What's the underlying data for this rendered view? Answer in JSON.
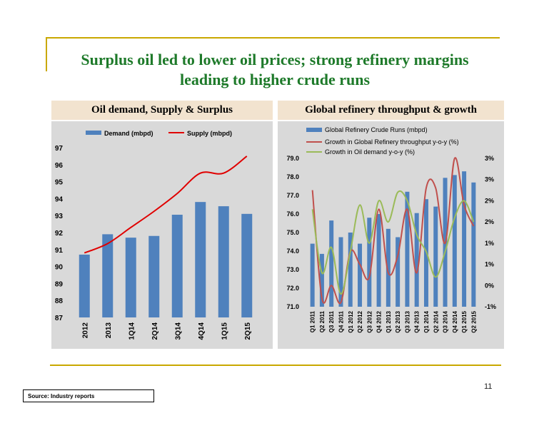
{
  "slide": {
    "title_line1": "Surplus oil led to lower oil prices; strong refinery margins",
    "title_line2": "leading to higher crude runs",
    "left_heading": "Oil demand, Supply & Surplus",
    "right_heading": "Global refinery throughput & growth",
    "page_number": "11",
    "source": "Source: Industry reports"
  },
  "colors": {
    "accent_gold": "#c9a800",
    "title_green": "#1e7a2a",
    "bar_blue": "#4f81bd",
    "line_red": "#e00000",
    "line_dark_red": "#c0504d",
    "line_green": "#9bbb59"
  },
  "chart_data": [
    {
      "type": "bar",
      "categories": [
        "2012",
        "2013",
        "1Q14",
        "2Q14",
        "3Q14",
        "4Q14",
        "1Q15",
        "2Q15"
      ],
      "series": [
        {
          "name": "Demand (mbpd)",
          "type": "bar",
          "values": [
            90.7,
            91.9,
            91.7,
            91.8,
            93.05,
            93.8,
            93.55,
            93.1
          ]
        },
        {
          "name": "Supply (mbpd)",
          "type": "line",
          "values": [
            90.8,
            91.35,
            92.3,
            93.25,
            94.3,
            95.5,
            95.5,
            96.5
          ]
        }
      ],
      "ylim": [
        87,
        97
      ],
      "yticks": [
        "87",
        "88",
        "89",
        "90",
        "91",
        "92",
        "93",
        "94",
        "95",
        "96",
        "97"
      ],
      "grid": false,
      "legend": "top"
    },
    {
      "type": "bar",
      "categories": [
        "Q1 2011",
        "Q2 2011",
        "Q3 2011",
        "Q4 2011",
        "Q1 2012",
        "Q2 2012",
        "Q3 2012",
        "Q4 2012",
        "Q1 2013",
        "Q2 2013",
        "Q3 2013",
        "Q4 2013",
        "Q1 2014",
        "Q2 2014",
        "Q3 2014",
        "Q4 2014",
        "Q1 2015",
        "Q2 2015"
      ],
      "series": [
        {
          "name": "Global Refinery Crude Runs (mbpd)",
          "type": "bar",
          "axis": "left",
          "values": [
            74.4,
            73.85,
            75.65,
            74.75,
            75.0,
            74.4,
            75.8,
            76.0,
            75.2,
            74.75,
            77.2,
            76.05,
            76.8,
            76.4,
            77.95,
            78.1,
            78.3,
            77.7
          ]
        },
        {
          "name": "Growth in Global Refinery throughput y-o-y (%)",
          "type": "line",
          "axis": "right",
          "values": [
            2.25,
            -0.3,
            0.0,
            -0.4,
            0.8,
            0.5,
            0.2,
            1.8,
            0.3,
            0.7,
            1.8,
            0.3,
            2.3,
            2.3,
            1.0,
            3.0,
            1.9,
            1.4
          ]
        },
        {
          "name": "Growth in Oil demand y-o-y (%)",
          "type": "line",
          "axis": "right",
          "values": [
            1.8,
            0.3,
            0.9,
            -0.2,
            0.8,
            1.9,
            1.0,
            2.0,
            1.5,
            2.2,
            2.0,
            1.2,
            0.8,
            0.2,
            0.8,
            1.6,
            2.0,
            1.5
          ]
        }
      ],
      "ylim_left": [
        71.0,
        79.0
      ],
      "yticks_left": [
        "71.0",
        "72.0",
        "73.0",
        "74.0",
        "75.0",
        "76.0",
        "77.0",
        "78.0",
        "79.0"
      ],
      "ylim_right": [
        -0.5,
        3.0
      ],
      "yticks_right": [
        "-1%",
        "0%",
        "1%",
        "1%",
        "2%",
        "2%",
        "3%",
        "3%"
      ],
      "grid": false,
      "legend": "top"
    }
  ]
}
